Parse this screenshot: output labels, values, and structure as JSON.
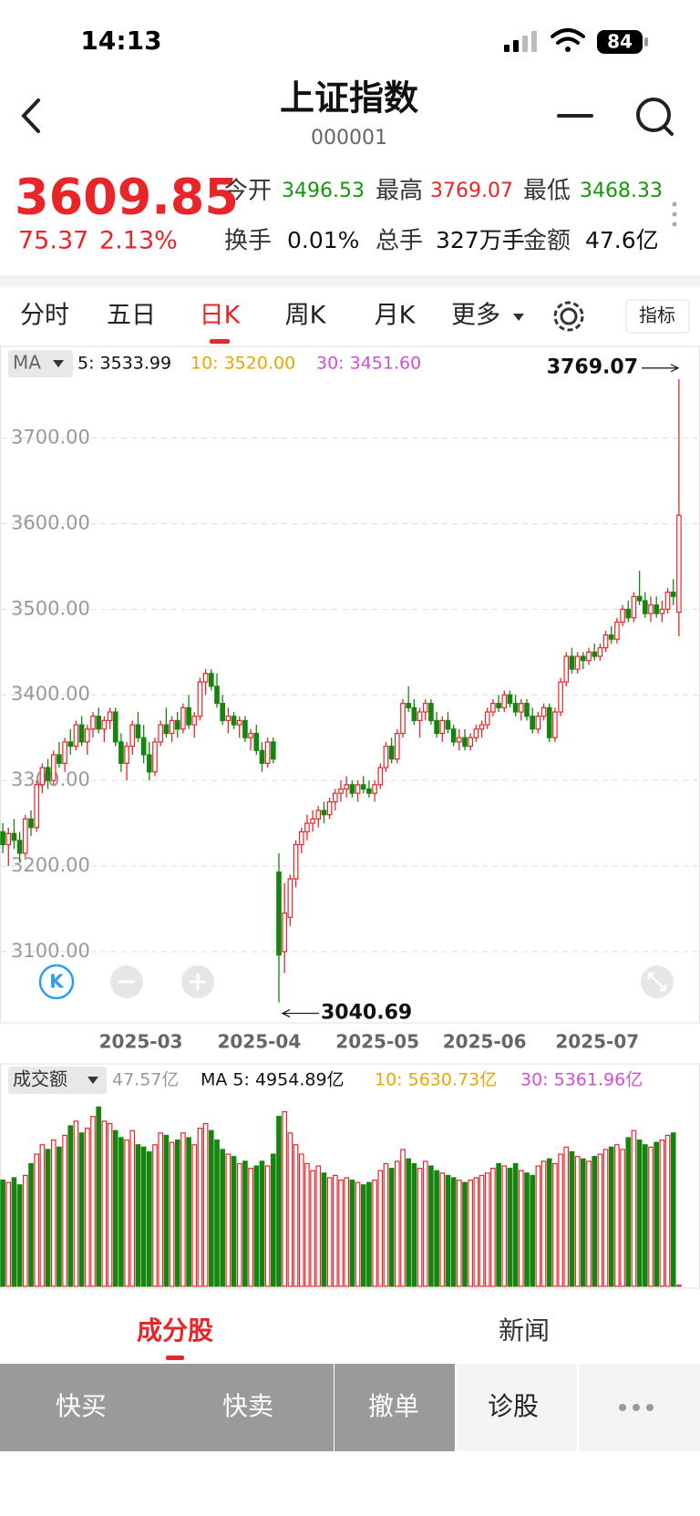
{
  "status_bar": {
    "time": "14:13",
    "battery": "84"
  },
  "header": {
    "title": "上证指数",
    "code": "000001"
  },
  "quote": {
    "price": "3609.85",
    "change": "75.37",
    "change_pct": "2.13%",
    "stats": [
      {
        "label": "今开",
        "value": "3496.53",
        "color": "#14960f"
      },
      {
        "label": "最高",
        "value": "3769.07",
        "color": "#e8262a"
      },
      {
        "label": "最低",
        "value": "3468.33",
        "color": "#14960f"
      },
      {
        "label": "换手",
        "value": "0.01%",
        "color": "#111"
      },
      {
        "label": "总手",
        "value": "327万手",
        "color": "#111"
      },
      {
        "label": "金额",
        "value": "47.6亿",
        "color": "#111"
      }
    ]
  },
  "tabs": {
    "items": [
      "分时",
      "五日",
      "日K",
      "周K",
      "月K",
      "更多"
    ],
    "active": 2,
    "indicator": "指标"
  },
  "chart_data": {
    "type": "candlestick",
    "ma_legend": {
      "label": "MA",
      "items": [
        {
          "text": "5: 3533.99",
          "color": "#111"
        },
        {
          "text": "10: 3520.00",
          "color": "#e6a700"
        },
        {
          "text": "30: 3451.60",
          "color": "#d24fd2"
        }
      ]
    },
    "up_color": "#e8262a",
    "down_color": "#14860f",
    "ylim": [
      3020,
      3800
    ],
    "yticks": [
      {
        "value": 3100,
        "label": "3100.00"
      },
      {
        "value": 3200,
        "label": "3200.00"
      },
      {
        "value": 3300,
        "label": "3300.00"
      },
      {
        "value": 3400,
        "label": "3400.00"
      },
      {
        "value": 3500,
        "label": "3500.00"
      },
      {
        "value": 3600,
        "label": "3600.00"
      },
      {
        "value": 3700,
        "label": "3700.00"
      }
    ],
    "grid": true,
    "xticks": [
      {
        "value": 25,
        "label": "2025-03"
      },
      {
        "value": 46,
        "label": "2025-04"
      },
      {
        "value": 67,
        "label": "2025-05"
      },
      {
        "value": 86,
        "label": "2025-06"
      },
      {
        "value": 106,
        "label": "2025-07"
      }
    ],
    "candles": [
      [
        3240,
        3250,
        3215,
        3225
      ],
      [
        3225,
        3245,
        3200,
        3238
      ],
      [
        3238,
        3255,
        3220,
        3230
      ],
      [
        3230,
        3240,
        3205,
        3215
      ],
      [
        3215,
        3260,
        3210,
        3255
      ],
      [
        3255,
        3265,
        3235,
        3245
      ],
      [
        3245,
        3300,
        3240,
        3295
      ],
      [
        3295,
        3320,
        3285,
        3315
      ],
      [
        3315,
        3325,
        3290,
        3300
      ],
      [
        3300,
        3335,
        3295,
        3330
      ],
      [
        3330,
        3345,
        3315,
        3320
      ],
      [
        3320,
        3350,
        3310,
        3345
      ],
      [
        3345,
        3360,
        3330,
        3340
      ],
      [
        3340,
        3370,
        3335,
        3365
      ],
      [
        3365,
        3375,
        3340,
        3345
      ],
      [
        3345,
        3365,
        3330,
        3360
      ],
      [
        3360,
        3380,
        3350,
        3375
      ],
      [
        3375,
        3385,
        3355,
        3360
      ],
      [
        3360,
        3375,
        3345,
        3370
      ],
      [
        3370,
        3385,
        3360,
        3380
      ],
      [
        3380,
        3385,
        3340,
        3345
      ],
      [
        3345,
        3355,
        3310,
        3320
      ],
      [
        3320,
        3345,
        3300,
        3340
      ],
      [
        3340,
        3370,
        3330,
        3365
      ],
      [
        3365,
        3380,
        3345,
        3350
      ],
      [
        3350,
        3365,
        3320,
        3330
      ],
      [
        3330,
        3345,
        3300,
        3310
      ],
      [
        3310,
        3350,
        3305,
        3345
      ],
      [
        3345,
        3370,
        3340,
        3365
      ],
      [
        3365,
        3385,
        3350,
        3355
      ],
      [
        3355,
        3375,
        3345,
        3370
      ],
      [
        3370,
        3380,
        3350,
        3360
      ],
      [
        3360,
        3390,
        3355,
        3385
      ],
      [
        3385,
        3400,
        3360,
        3365
      ],
      [
        3365,
        3380,
        3350,
        3375
      ],
      [
        3375,
        3420,
        3370,
        3415
      ],
      [
        3415,
        3430,
        3400,
        3425
      ],
      [
        3425,
        3430,
        3405,
        3410
      ],
      [
        3410,
        3425,
        3385,
        3390
      ],
      [
        3390,
        3400,
        3365,
        3370
      ],
      [
        3370,
        3385,
        3355,
        3375
      ],
      [
        3375,
        3380,
        3360,
        3365
      ],
      [
        3365,
        3375,
        3350,
        3370
      ],
      [
        3370,
        3375,
        3345,
        3350
      ],
      [
        3350,
        3360,
        3335,
        3355
      ],
      [
        3355,
        3365,
        3330,
        3335
      ],
      [
        3335,
        3345,
        3310,
        3320
      ],
      [
        3320,
        3350,
        3315,
        3345
      ],
      [
        3345,
        3350,
        3320,
        3325
      ],
      [
        3193,
        3215,
        3040.69,
        3096
      ],
      [
        3100,
        3180,
        3075,
        3145
      ],
      [
        3140,
        3190,
        3130,
        3185
      ],
      [
        3185,
        3230,
        3175,
        3225
      ],
      [
        3225,
        3245,
        3215,
        3240
      ],
      [
        3240,
        3260,
        3230,
        3250
      ],
      [
        3250,
        3265,
        3240,
        3255
      ],
      [
        3255,
        3270,
        3245,
        3265
      ],
      [
        3265,
        3275,
        3250,
        3260
      ],
      [
        3260,
        3280,
        3255,
        3275
      ],
      [
        3275,
        3290,
        3265,
        3285
      ],
      [
        3285,
        3300,
        3275,
        3290
      ],
      [
        3290,
        3305,
        3280,
        3295
      ],
      [
        3295,
        3300,
        3280,
        3285
      ],
      [
        3285,
        3300,
        3275,
        3295
      ],
      [
        3295,
        3305,
        3285,
        3290
      ],
      [
        3290,
        3300,
        3280,
        3285
      ],
      [
        3285,
        3300,
        3275,
        3295
      ],
      [
        3295,
        3320,
        3290,
        3315
      ],
      [
        3315,
        3345,
        3310,
        3340
      ],
      [
        3340,
        3350,
        3320,
        3325
      ],
      [
        3325,
        3360,
        3320,
        3355
      ],
      [
        3355,
        3395,
        3350,
        3390
      ],
      [
        3390,
        3410,
        3380,
        3385
      ],
      [
        3385,
        3395,
        3365,
        3370
      ],
      [
        3370,
        3385,
        3350,
        3380
      ],
      [
        3380,
        3395,
        3370,
        3390
      ],
      [
        3390,
        3395,
        3365,
        3370
      ],
      [
        3370,
        3380,
        3350,
        3355
      ],
      [
        3355,
        3375,
        3345,
        3370
      ],
      [
        3370,
        3380,
        3355,
        3360
      ],
      [
        3360,
        3365,
        3340,
        3345
      ],
      [
        3345,
        3360,
        3335,
        3350
      ],
      [
        3350,
        3360,
        3335,
        3340
      ],
      [
        3340,
        3355,
        3335,
        3350
      ],
      [
        3350,
        3365,
        3345,
        3360
      ],
      [
        3360,
        3370,
        3350,
        3365
      ],
      [
        3365,
        3385,
        3360,
        3380
      ],
      [
        3380,
        3395,
        3375,
        3390
      ],
      [
        3390,
        3400,
        3380,
        3385
      ],
      [
        3385,
        3405,
        3380,
        3400
      ],
      [
        3400,
        3405,
        3385,
        3390
      ],
      [
        3390,
        3400,
        3375,
        3380
      ],
      [
        3380,
        3395,
        3370,
        3390
      ],
      [
        3390,
        3395,
        3370,
        3375
      ],
      [
        3375,
        3385,
        3355,
        3360
      ],
      [
        3360,
        3380,
        3355,
        3375
      ],
      [
        3375,
        3390,
        3370,
        3385
      ],
      [
        3385,
        3390,
        3345,
        3350
      ],
      [
        3350,
        3385,
        3345,
        3380
      ],
      [
        3380,
        3420,
        3375,
        3415
      ],
      [
        3415,
        3450,
        3410,
        3445
      ],
      [
        3445,
        3455,
        3425,
        3430
      ],
      [
        3430,
        3450,
        3425,
        3445
      ],
      [
        3445,
        3450,
        3430,
        3440
      ],
      [
        3440,
        3455,
        3435,
        3450
      ],
      [
        3450,
        3460,
        3440,
        3445
      ],
      [
        3445,
        3460,
        3440,
        3455
      ],
      [
        3455,
        3475,
        3450,
        3470
      ],
      [
        3470,
        3480,
        3460,
        3465
      ],
      [
        3465,
        3490,
        3460,
        3485
      ],
      [
        3485,
        3505,
        3480,
        3500
      ],
      [
        3500,
        3510,
        3485,
        3490
      ],
      [
        3490,
        3520,
        3485,
        3515
      ],
      [
        3515,
        3545,
        3505,
        3510
      ],
      [
        3510,
        3520,
        3490,
        3495
      ],
      [
        3495,
        3515,
        3485,
        3505
      ],
      [
        3505,
        3515,
        3490,
        3495
      ],
      [
        3495,
        3510,
        3485,
        3500
      ],
      [
        3500,
        3525,
        3495,
        3520
      ],
      [
        3520,
        3535,
        3505,
        3515
      ],
      [
        3496.53,
        3769.07,
        3468.33,
        3609.85
      ]
    ],
    "volume": {
      "title": "成交额",
      "latest": "47.57亿",
      "ma_legend": [
        {
          "text": "MA 5: 4954.89亿",
          "color": "#111"
        },
        {
          "text": "10: 5630.73亿",
          "color": "#e6a700"
        },
        {
          "text": "30: 5361.96亿",
          "color": "#d24fd2"
        }
      ],
      "ylim": [
        0,
        8000
      ],
      "values": [
        4500,
        4400,
        4600,
        4300,
        4700,
        5200,
        5600,
        6000,
        5800,
        6200,
        5900,
        6400,
        6800,
        7000,
        6500,
        6700,
        7200,
        7600,
        7000,
        6900,
        6600,
        6300,
        6200,
        6600,
        6000,
        5900,
        5700,
        6000,
        6500,
        6400,
        6100,
        6200,
        6500,
        6300,
        6000,
        6700,
        6900,
        6600,
        6200,
        5800,
        5600,
        5500,
        5200,
        5300,
        5000,
        5100,
        5300,
        5100,
        5600,
        7200,
        7400,
        6500,
        6000,
        5600,
        5200,
        4900,
        5100,
        4800,
        4600,
        4700,
        4500,
        4600,
        4500,
        4400,
        4300,
        4400,
        4500,
        4900,
        5200,
        5000,
        5300,
        5800,
        5400,
        5200,
        5000,
        5300,
        5100,
        4900,
        4800,
        4700,
        4600,
        4500,
        4400,
        4500,
        4600,
        4700,
        4800,
        5000,
        5200,
        5100,
        5000,
        5200,
        4900,
        4800,
        4700,
        5100,
        5300,
        5400,
        5200,
        5600,
        5900,
        5700,
        5500,
        5400,
        5300,
        5500,
        5600,
        5800,
        5900,
        6000,
        5800,
        6300,
        6600,
        6200,
        6000,
        5900,
        6100,
        6200,
        6400,
        6500,
        47.57
      ]
    }
  },
  "bottom_tabs": {
    "items": [
      "成分股",
      "新闻"
    ],
    "active": 0
  },
  "actions": [
    "快买",
    "快卖",
    "撤单",
    "诊股"
  ]
}
